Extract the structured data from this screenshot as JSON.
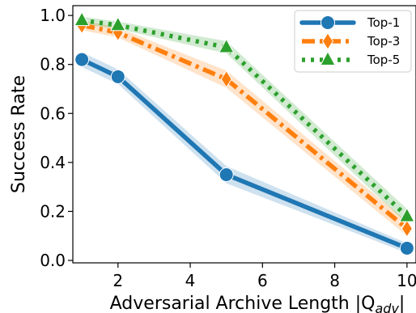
{
  "chart_data": {
    "type": "line",
    "title": "",
    "xlabel": "Adversarial Archive Length |Q",
    "xlabel_sub": "adv",
    "xlabel_end": "|",
    "ylabel": "Success Rate",
    "xlim": [
      0.75,
      10.25
    ],
    "ylim": [
      -0.01,
      1.04
    ],
    "xticks": [
      2,
      4,
      6,
      8,
      10
    ],
    "xtick_labels": [
      "2",
      "4",
      "6",
      "8",
      "10"
    ],
    "yticks": [
      0.0,
      0.2,
      0.4,
      0.6,
      0.8,
      1.0
    ],
    "ytick_labels": [
      "0.0",
      "0.2",
      "0.4",
      "0.6",
      "0.8",
      "1.0"
    ],
    "grid": false,
    "legend_position": "top-right",
    "x": [
      1,
      2,
      5,
      10
    ],
    "series": [
      {
        "name": "Top-1",
        "values": [
          0.82,
          0.75,
          0.35,
          0.05
        ],
        "band": [
          0.03,
          0.03,
          0.035,
          0.02
        ],
        "color": "#1f77b4",
        "marker": "circle",
        "linestyle": "solid"
      },
      {
        "name": "Top-3",
        "values": [
          0.96,
          0.93,
          0.74,
          0.13
        ],
        "band": [
          0.02,
          0.02,
          0.035,
          0.03
        ],
        "color": "#ff7f0e",
        "marker": "diamond",
        "linestyle": "dashdot"
      },
      {
        "name": "Top-5",
        "values": [
          0.98,
          0.96,
          0.87,
          0.18
        ],
        "band": [
          0.015,
          0.015,
          0.025,
          0.03
        ],
        "color": "#2ca02c",
        "marker": "triangle",
        "linestyle": "dotted"
      }
    ]
  }
}
